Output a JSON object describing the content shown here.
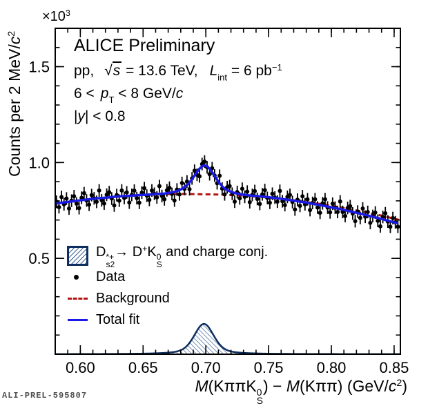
{
  "watermark": "ALI-PREL-595807",
  "annotations": {
    "line1": "ALICE Preliminary",
    "line2": {
      "pp": "pp,",
      "sqrt_sign": "√",
      "s": "s",
      "rest1": " = 13.6 TeV,",
      "L": "L",
      "Lsub": "int",
      "rest2": " = 6 pb",
      "Lsup": "−1"
    },
    "line3": {
      "pre": "6 <",
      "p": "p",
      "psub": "T",
      "post": " < 8 GeV/",
      "c": "c"
    },
    "line4": {
      "bar": "|",
      "y": "y",
      "post": "| < 0.8"
    }
  },
  "legend": {
    "items": [
      {
        "parts": {
          "d": "D",
          "dsup": "*+",
          "dsub": "s2",
          "arrow": "→",
          "d2": " D",
          "d2sup": "+",
          "k": "K",
          "ksup": "0",
          "ksub": "S",
          "rest": " and charge conj."
        }
      },
      {
        "label": "Data"
      },
      {
        "label": "Background"
      },
      {
        "label": "Total fit"
      }
    ]
  },
  "axis_display": {
    "y_title": {
      "pre": "Counts per 2 MeV/",
      "c": "c",
      "sup": "2"
    },
    "x_title": {
      "M1": "M",
      "p1": "(Kππ",
      "K": "K",
      "ksup": "0",
      "ksub": "S",
      "p2": ")",
      "minus": "  −  ",
      "M2": "M",
      "p3": "(Kππ) (GeV/",
      "c": "c",
      "csup": "2",
      "p4": ")"
    },
    "y_multiplier": {
      "base": "×10",
      "exp": "3"
    }
  },
  "chart_data": {
    "type": "scatter",
    "title": "ALICE Preliminary",
    "xlabel": "M(KππK0S) − M(Kππ) (GeV/c2)",
    "ylabel": "Counts per 2 MeV/c2 (×10^3)",
    "xlim": [
      0.58,
      0.855
    ],
    "ylim": [
      0,
      1.7
    ],
    "x_major_ticks": [
      0.6,
      0.65,
      0.7,
      0.75,
      0.8,
      0.85
    ],
    "x_minor_step": 0.01,
    "y_major_ticks": [
      0.5,
      1.0,
      1.5
    ],
    "y_minor_step": 0.1,
    "x_tick_decimals": 2,
    "y_tick_decimals": 1,
    "grid": false,
    "legend_position": "lower-left",
    "colors": {
      "fit": "#1a1ae6",
      "background": "#b31212",
      "signal_edge": "#0d2e5e",
      "signal_hatch": "#3a5f92",
      "data": "#000000"
    },
    "series": [
      {
        "name": "Data",
        "type": "errorbar",
        "x_start": 0.581,
        "x_step": 0.002,
        "yerr": 0.033,
        "y": [
          0.795,
          0.767,
          0.82,
          0.782,
          0.812,
          0.76,
          0.801,
          0.824,
          0.785,
          0.762,
          0.816,
          0.84,
          0.802,
          0.78,
          0.83,
          0.813,
          0.795,
          0.854,
          0.803,
          0.786,
          0.832,
          0.845,
          0.812,
          0.776,
          0.83,
          0.801,
          0.854,
          0.815,
          0.844,
          0.791,
          0.831,
          0.853,
          0.814,
          0.79,
          0.843,
          0.866,
          0.827,
          0.805,
          0.854,
          0.837,
          0.818,
          0.877,
          0.825,
          0.808,
          0.855,
          0.868,
          0.836,
          0.802,
          0.859,
          0.834,
          0.893,
          0.862,
          0.901,
          0.861,
          0.917,
          0.957,
          0.936,
          0.928,
          0.992,
          1.005,
          0.975,
          0.939,
          0.97,
          0.932,
          0.892,
          0.931,
          0.864,
          0.834,
          0.871,
          0.877,
          0.837,
          0.796,
          0.846,
          0.813,
          0.863,
          0.821,
          0.848,
          0.793,
          0.831,
          0.851,
          0.81,
          0.784,
          0.834,
          0.856,
          0.815,
          0.79,
          0.837,
          0.817,
          0.796,
          0.852,
          0.798,
          0.778,
          0.821,
          0.831,
          0.794,
          0.755,
          0.806,
          0.774,
          0.824,
          0.782,
          0.808,
          0.752,
          0.789,
          0.808,
          0.765,
          0.738,
          0.787,
          0.808,
          0.765,
          0.74,
          0.785,
          0.764,
          0.742,
          0.797,
          0.742,
          0.721,
          0.763,
          0.772,
          0.734,
          0.694,
          0.744,
          0.711,
          0.76,
          0.717,
          0.742,
          0.685,
          0.721,
          0.739,
          0.696,
          0.667,
          0.716,
          0.735,
          0.692,
          0.665,
          0.71,
          0.688,
          0.665
        ]
      },
      {
        "name": "Total fit",
        "type": "line",
        "x_start": 0.581,
        "x_step": 0.002,
        "y": [
          0.787,
          0.789,
          0.79,
          0.792,
          0.794,
          0.795,
          0.797,
          0.799,
          0.8,
          0.802,
          0.804,
          0.805,
          0.807,
          0.808,
          0.81,
          0.811,
          0.813,
          0.814,
          0.815,
          0.816,
          0.817,
          0.818,
          0.82,
          0.821,
          0.822,
          0.823,
          0.824,
          0.825,
          0.826,
          0.826,
          0.827,
          0.828,
          0.829,
          0.83,
          0.831,
          0.831,
          0.832,
          0.833,
          0.834,
          0.835,
          0.836,
          0.837,
          0.837,
          0.838,
          0.84,
          0.842,
          0.844,
          0.847,
          0.851,
          0.856,
          0.863,
          0.872,
          0.883,
          0.896,
          0.913,
          0.932,
          0.951,
          0.968,
          0.98,
          0.985,
          0.98,
          0.967,
          0.95,
          0.93,
          0.91,
          0.891,
          0.876,
          0.864,
          0.856,
          0.85,
          0.845,
          0.841,
          0.838,
          0.835,
          0.833,
          0.831,
          0.83,
          0.828,
          0.827,
          0.826,
          0.825,
          0.824,
          0.822,
          0.821,
          0.82,
          0.818,
          0.817,
          0.815,
          0.814,
          0.812,
          0.81,
          0.808,
          0.806,
          0.804,
          0.802,
          0.8,
          0.798,
          0.796,
          0.794,
          0.792,
          0.79,
          0.787,
          0.785,
          0.783,
          0.78,
          0.778,
          0.775,
          0.773,
          0.77,
          0.768,
          0.765,
          0.762,
          0.76,
          0.757,
          0.754,
          0.751,
          0.748,
          0.745,
          0.742,
          0.739,
          0.736,
          0.733,
          0.73,
          0.727,
          0.724,
          0.72,
          0.717,
          0.714,
          0.711,
          0.707,
          0.704,
          0.7,
          0.697,
          0.693,
          0.69,
          0.686,
          0.683
        ]
      },
      {
        "name": "Background",
        "type": "dashed-line",
        "x_start": 0.58,
        "x_step": 0.01,
        "y": [
          0.785,
          0.795,
          0.803,
          0.81,
          0.817,
          0.822,
          0.827,
          0.831,
          0.833,
          0.835,
          0.836,
          0.835,
          0.834,
          0.833,
          0.83,
          0.827,
          0.822,
          0.817,
          0.81,
          0.803,
          0.794,
          0.785,
          0.774,
          0.763,
          0.75,
          0.737,
          0.723,
          0.707,
          0.691
        ]
      },
      {
        "name": "Signal peak",
        "type": "hatched-area",
        "center": 0.6985,
        "amplitude": 0.158,
        "sigma": 0.0075,
        "gamma": 0.011,
        "gauss_frac": 0.6
      }
    ]
  }
}
